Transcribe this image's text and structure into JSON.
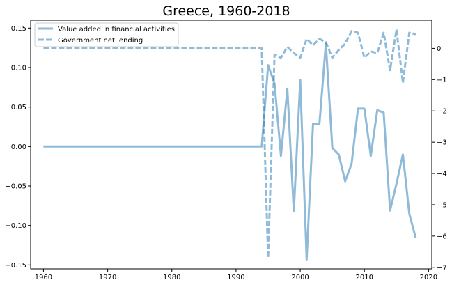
{
  "chart_data": {
    "type": "line",
    "title": "Greece, 1960-2018",
    "xlabel": "",
    "ylabel_left": "",
    "ylabel_right": "",
    "x": [
      1960,
      1961,
      1962,
      1963,
      1964,
      1965,
      1966,
      1967,
      1968,
      1969,
      1970,
      1971,
      1972,
      1973,
      1974,
      1975,
      1976,
      1977,
      1978,
      1979,
      1980,
      1981,
      1982,
      1983,
      1984,
      1985,
      1986,
      1987,
      1988,
      1989,
      1990,
      1991,
      1992,
      1993,
      1994,
      1995,
      1996,
      1997,
      1998,
      1999,
      2000,
      2001,
      2002,
      2003,
      2004,
      2005,
      2006,
      2007,
      2008,
      2009,
      2010,
      2011,
      2012,
      2013,
      2014,
      2015,
      2016,
      2017,
      2018
    ],
    "xlim": [
      1958,
      2020.5
    ],
    "x_ticks": [
      1960,
      1970,
      1980,
      1990,
      2000,
      2010,
      2020
    ],
    "left_axis": {
      "ylim": [
        -0.155,
        0.16
      ],
      "ticks": [
        -0.15,
        -0.1,
        -0.05,
        0.0,
        0.05,
        0.1,
        0.15
      ],
      "tick_labels": [
        "−0.15",
        "−0.10",
        "−0.05",
        "0.00",
        "0.05",
        "0.10",
        "0.15"
      ]
    },
    "right_axis": {
      "ylim": [
        -7.05,
        0.9
      ],
      "ticks": [
        0,
        -1,
        -2,
        -3,
        -4,
        -5,
        -6,
        -7
      ],
      "tick_labels": [
        "0",
        "−1",
        "−2",
        "−3",
        "−4",
        "−5",
        "−6",
        "−7"
      ]
    },
    "series": [
      {
        "name": "Value added in financial activities",
        "axis": "left",
        "style": "solid",
        "color": "#1f77b4",
        "values": [
          0,
          0,
          0,
          0,
          0,
          0,
          0,
          0,
          0,
          0,
          0,
          0,
          0,
          0,
          0,
          0,
          0,
          0,
          0,
          0,
          0,
          0,
          0,
          0,
          0,
          0,
          0,
          0,
          0,
          0,
          0,
          0,
          0,
          0,
          0,
          0.103,
          0.08,
          -0.012,
          0.073,
          -0.082,
          0.084,
          -0.143,
          0.029,
          0.029,
          0.13,
          -0.002,
          -0.01,
          -0.044,
          -0.022,
          0.048,
          0.048,
          -0.012,
          0.046,
          0.043,
          -0.081,
          -0.047,
          -0.01,
          -0.085,
          -0.116
        ]
      },
      {
        "name": "Government net lending",
        "axis": "right",
        "style": "dashed",
        "color": "#1f77b4",
        "values": [
          0,
          0,
          0,
          0,
          0,
          0,
          0,
          0,
          0,
          0,
          0,
          0,
          0,
          0,
          0,
          0,
          0,
          0,
          0,
          0,
          0,
          0,
          0,
          0,
          0,
          0,
          0,
          0,
          0,
          0,
          0,
          0,
          0,
          0,
          0,
          -6.7,
          -0.2,
          -0.3,
          0.05,
          -0.15,
          -0.3,
          0.3,
          0.1,
          0.3,
          0.2,
          -0.3,
          -0.05,
          0.15,
          0.55,
          0.5,
          -0.3,
          -0.1,
          -0.15,
          0.5,
          -0.7,
          0.6,
          -1.1,
          0.5,
          0.45
        ]
      }
    ],
    "legend_position": "top-left",
    "grid": false
  }
}
